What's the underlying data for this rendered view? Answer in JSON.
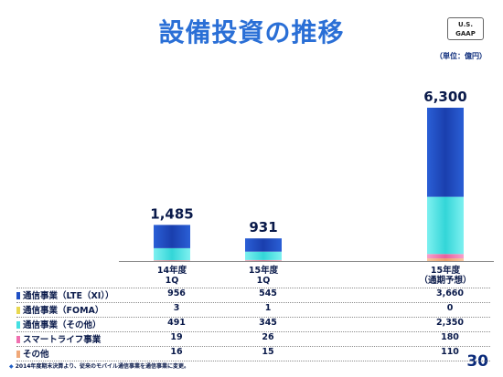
{
  "title": "設備投資の推移",
  "badge": {
    "line1": "U.S.",
    "line2": "GAAP"
  },
  "unit": "（単位：億円）",
  "footnote": {
    "marker": "◆",
    "text": "2014年度期末決算より、従来のモバイル通信事業を通信事業に変更。"
  },
  "page_number": "30",
  "colors": {
    "lte": "#1f4fc4",
    "foma": "#e8d850",
    "other_telecom": "#45e0e2",
    "smart_life": "#f070b0",
    "others": "#f0a878"
  },
  "chart_data": {
    "type": "bar",
    "stacked": true,
    "categories": [
      {
        "line1": "14年度",
        "line2": "1Q"
      },
      {
        "line1": "15年度",
        "line2": "1Q"
      },
      {
        "line1": "15年度",
        "line2": "（通期予想）"
      }
    ],
    "totals": [
      "1,485",
      "931",
      "6,300"
    ],
    "total_values": [
      1485,
      931,
      6300
    ],
    "series": [
      {
        "key": "others",
        "name": "その他",
        "values": [
          16,
          15,
          110
        ],
        "display": [
          "16",
          "15",
          "110"
        ]
      },
      {
        "key": "smart_life",
        "name": "スマートライフ事業",
        "values": [
          19,
          26,
          180
        ],
        "display": [
          "19",
          "26",
          "180"
        ]
      },
      {
        "key": "other_telecom",
        "name": "通信事業（その他）",
        "values": [
          491,
          345,
          2350
        ],
        "display": [
          "491",
          "345",
          "2,350"
        ]
      },
      {
        "key": "foma",
        "name": "通信事業（FOMA）",
        "values": [
          3,
          1,
          0
        ],
        "display": [
          "3",
          "1",
          "0"
        ]
      },
      {
        "key": "lte",
        "name": "通信事業（LTE（XI））",
        "values": [
          956,
          545,
          3660
        ],
        "display": [
          "956",
          "545",
          "3,660"
        ]
      }
    ],
    "table_order": [
      "lte",
      "foma",
      "other_telecom",
      "smart_life",
      "others"
    ],
    "ylim": [
      0,
      6300
    ]
  }
}
